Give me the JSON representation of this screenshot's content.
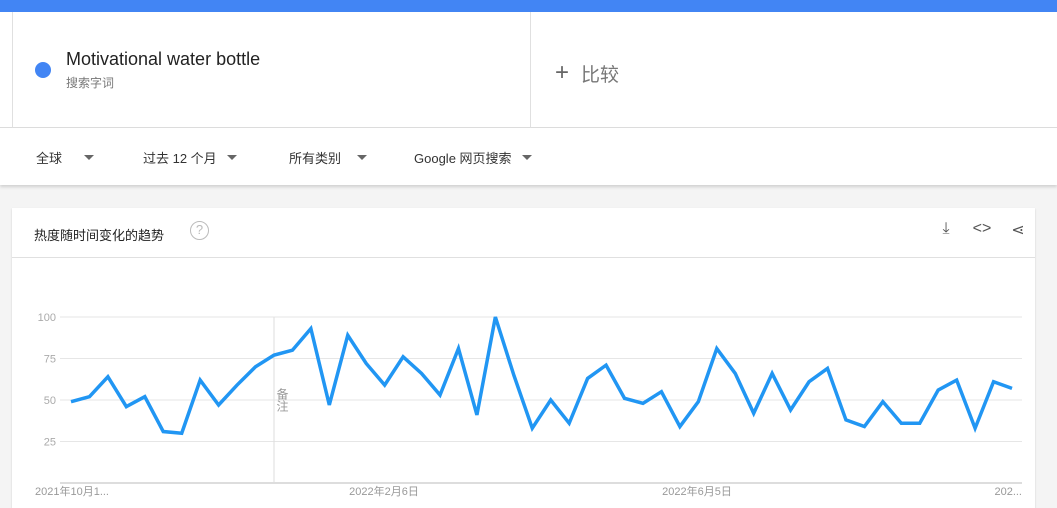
{
  "term": {
    "name": "Motivational water bottle",
    "subtitle": "搜索字词",
    "color": "#4285f4"
  },
  "compare": {
    "label": "比较",
    "icon": "plus-icon"
  },
  "filters": {
    "region": "全球",
    "time": "过去 12 个月",
    "category": "所有类别",
    "source": "Google 网页搜索"
  },
  "card": {
    "title": "热度随时间变化的趋势",
    "help": "?",
    "icons": [
      "download-icon",
      "embed-icon",
      "share-icon"
    ]
  },
  "chart_data": {
    "type": "line",
    "ylim": [
      0,
      100
    ],
    "y_ticks": [
      "100",
      "75",
      "50",
      "25"
    ],
    "x_tick_labels": [
      "2021年10月1...",
      "2022年2月6日",
      "2022年6月5日",
      "202..."
    ],
    "annotation": "备注",
    "grid": true,
    "color": "#2196f3",
    "values": [
      49,
      52,
      64,
      46,
      52,
      31,
      30,
      62,
      47,
      59,
      70,
      77,
      80,
      93,
      47,
      89,
      72,
      59,
      76,
      66,
      53,
      81,
      41,
      100,
      65,
      33,
      50,
      36,
      63,
      71,
      51,
      48,
      55,
      34,
      49,
      81,
      66,
      42,
      66,
      44,
      61,
      69,
      38,
      34,
      49,
      36,
      36,
      56,
      62,
      33,
      61,
      57
    ]
  }
}
